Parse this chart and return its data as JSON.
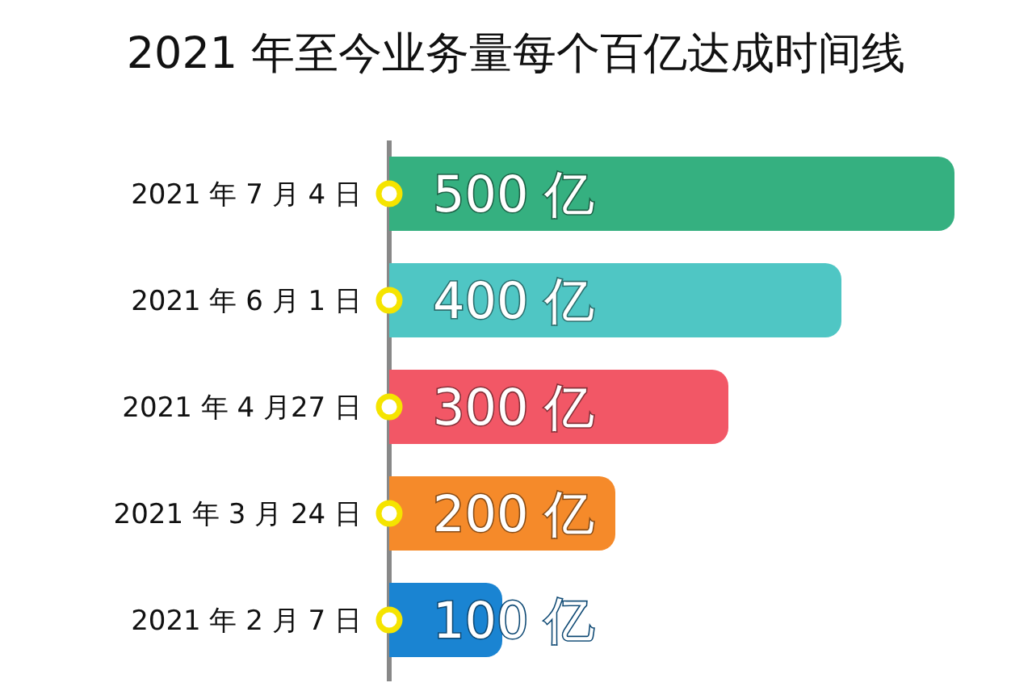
{
  "chart_data": {
    "type": "bar",
    "orientation": "horizontal",
    "title": "2021 年至今业务量每个百亿达成时间线",
    "categories": [
      "2021 年 7 月 4 日",
      "2021 年 6 月 1 日",
      "2021 年 4 月27 日",
      "2021 年 3 月 24 日",
      "2021 年 2 月 7 日"
    ],
    "series": [
      {
        "values": [
          500,
          400,
          300,
          200,
          100
        ],
        "colors": [
          "#35b080",
          "#4fc6c4",
          "#f25766",
          "#f58a2a",
          "#1a84d2"
        ],
        "value_labels": [
          "500 亿",
          "400 亿",
          "300 亿",
          "200 亿",
          "100 亿"
        ]
      },
      {
        "type": "scatter",
        "values": [
          0,
          0,
          0,
          0,
          0
        ],
        "color": "#f5e400",
        "marker": "circle"
      }
    ],
    "tick_labels": "y"
  }
}
